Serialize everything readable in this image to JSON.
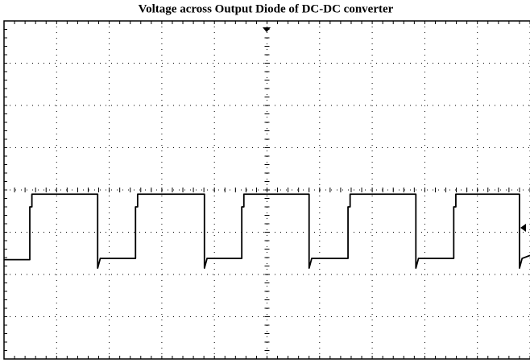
{
  "chart_data": {
    "type": "line",
    "title": "Voltage across Output Diode of DC-DC converter",
    "xlim": [
      0,
      10
    ],
    "ylim": [
      0,
      8
    ],
    "xticks": [
      0,
      1,
      2,
      3,
      4,
      5,
      6,
      7,
      8,
      9,
      10
    ],
    "yticks": [
      0,
      1,
      2,
      3,
      4,
      5,
      6,
      7,
      8
    ],
    "grid": true,
    "series": [
      {
        "color": "#000000",
        "x": [
          0,
          0.49,
          0.49,
          0.53,
          0.53,
          1.78,
          1.78,
          1.83,
          2.5,
          2.5,
          2.54,
          2.54,
          3.81,
          3.81,
          3.86,
          4.52,
          4.52,
          4.56,
          4.56,
          5.8,
          5.8,
          5.85,
          6.54,
          6.54,
          6.58,
          6.58,
          7.83,
          7.83,
          7.88,
          8.55,
          8.55,
          8.59,
          8.59,
          9.8,
          9.8,
          9.85,
          10
        ],
        "values": [
          2.35,
          2.35,
          3.6,
          3.6,
          3.9,
          3.9,
          2.15,
          2.38,
          2.38,
          3.6,
          3.6,
          3.9,
          3.9,
          2.15,
          2.38,
          2.38,
          3.6,
          3.6,
          3.9,
          3.9,
          2.15,
          2.38,
          2.38,
          3.6,
          3.6,
          3.9,
          3.9,
          2.15,
          2.38,
          2.38,
          3.6,
          3.6,
          3.9,
          3.9,
          2.15,
          2.38,
          2.45
        ]
      }
    ]
  }
}
